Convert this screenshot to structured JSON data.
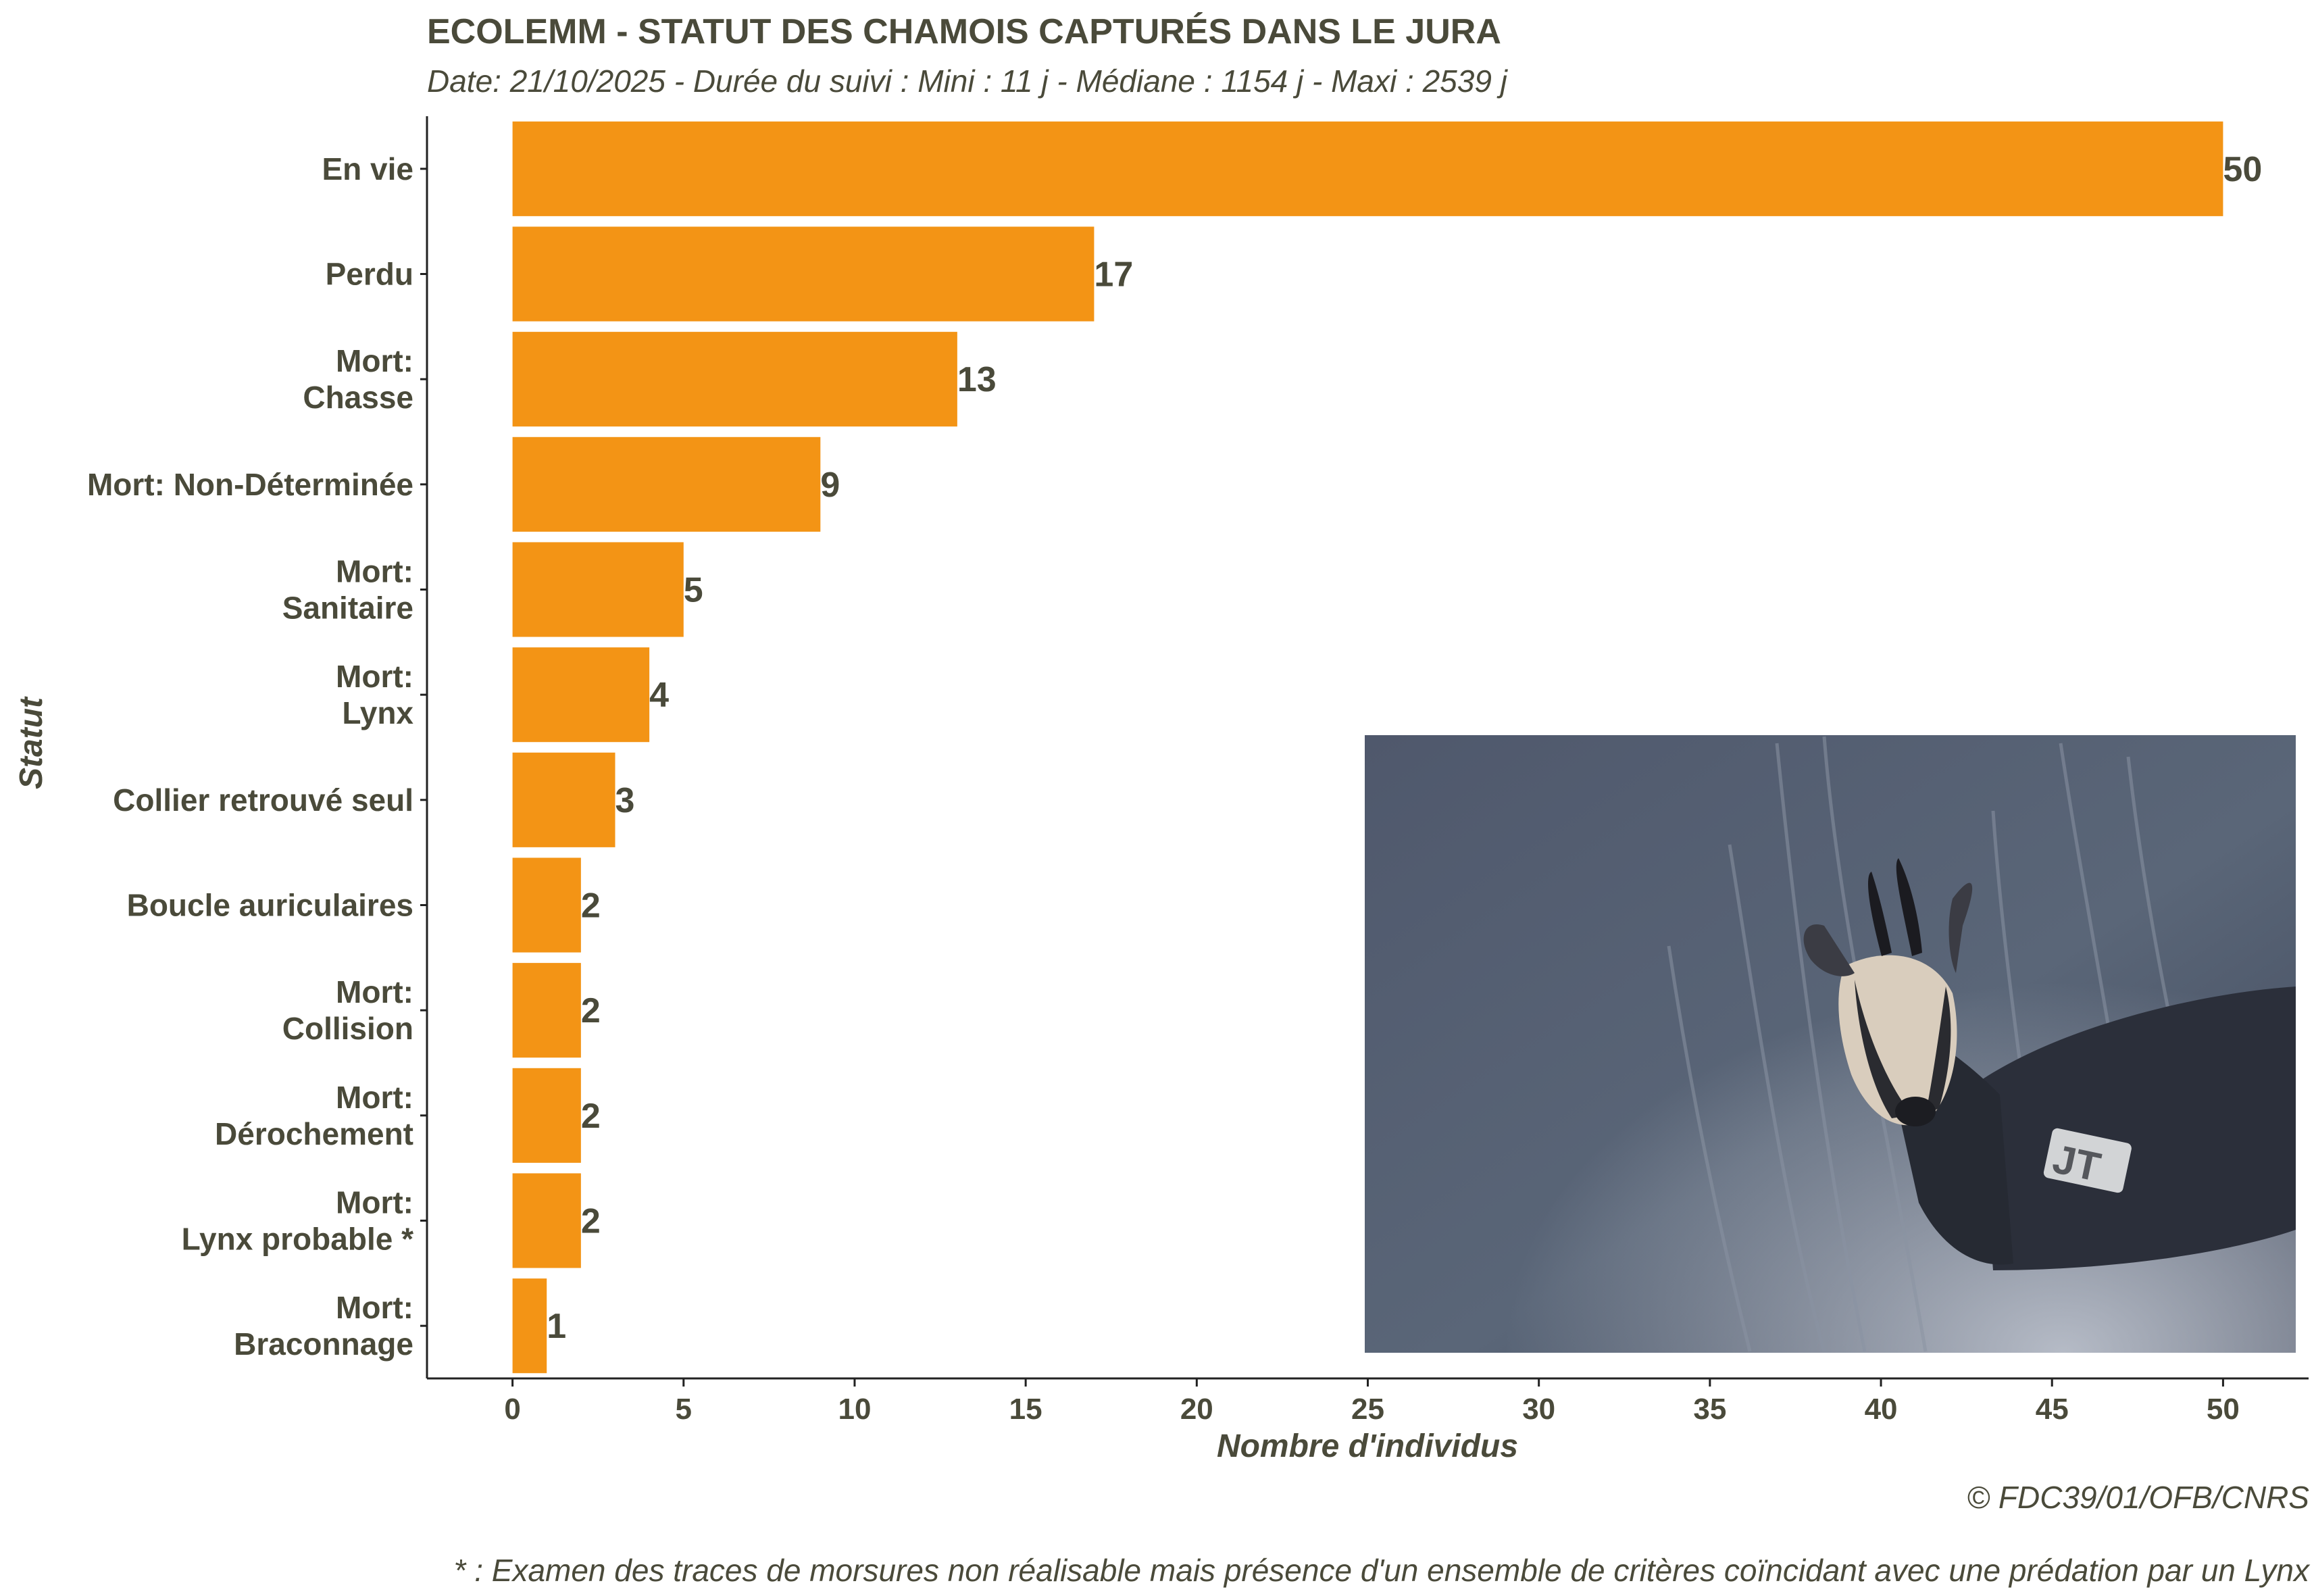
{
  "chart_data": {
    "type": "bar",
    "orientation": "horizontal",
    "title": "ECOLEMM - STATUT DES CHAMOIS CAPTURÉS DANS LE JURA",
    "subtitle": "Date: 21/10/2025 -  Durée du suivi : Mini : 11 j - Médiane : 1154 j - Maxi : 2539 j",
    "xlabel": "Nombre d'individus",
    "ylabel": "Statut",
    "xlim": [
      -2.5,
      52.5
    ],
    "x_ticks": [
      0,
      5,
      10,
      15,
      20,
      25,
      30,
      35,
      40,
      45,
      50
    ],
    "categories": [
      [
        "En vie"
      ],
      [
        "Perdu"
      ],
      [
        "Mort:",
        "Chasse"
      ],
      [
        "Mort: Non-Déterminée"
      ],
      [
        "Mort:",
        "Sanitaire"
      ],
      [
        "Mort:",
        "Lynx"
      ],
      [
        "Collier retrouvé seul"
      ],
      [
        "Boucle auriculaires"
      ],
      [
        "Mort:",
        "Collision"
      ],
      [
        "Mort:",
        "Dérochement"
      ],
      [
        "Mort:",
        "Lynx probable *"
      ],
      [
        "Mort:",
        "Braconnage"
      ]
    ],
    "values": [
      50,
      17,
      13,
      9,
      5,
      4,
      3,
      2,
      2,
      2,
      2,
      1
    ],
    "bar_color": "#f39415",
    "text_color": "#4a4a3a",
    "grid": false,
    "captions": [
      "© FDC39/01/OFB/CNRS",
      "* : Examen des traces de morsures non réalisable mais présence d'un ensemble de critères coïncidant avec une prédation par un Lynx"
    ]
  },
  "photo": {
    "description_icon": "chamois-photo"
  }
}
